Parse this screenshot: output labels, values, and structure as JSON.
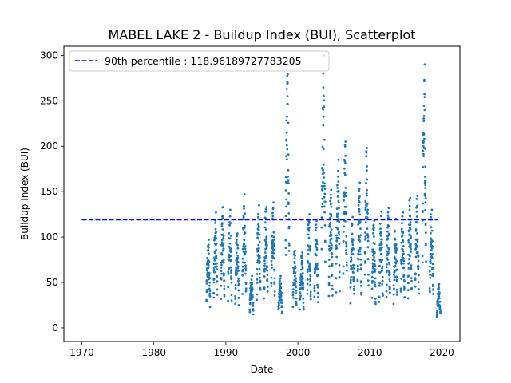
{
  "chart_data": {
    "type": "scatter",
    "title": "MABEL LAKE 2 - Buildup Index (BUI), Scatterplot",
    "xlabel": "Date",
    "ylabel": "Buildup Index (BUI)",
    "xlim": [
      1967.5,
      2022.5
    ],
    "ylim": [
      -15,
      310
    ],
    "x_ticks": [
      1970,
      1980,
      1990,
      2000,
      2010,
      2020
    ],
    "y_ticks": [
      0,
      50,
      100,
      150,
      200,
      250,
      300
    ],
    "grid": false,
    "legend_position": "top-left",
    "colors": {
      "points": "#1f77b4",
      "reference": "#0000ff"
    },
    "reference_line": {
      "label": "90th percentile : 118.96189727783205",
      "value": 118.96189727783205,
      "x_range": [
        1970,
        2019.5
      ],
      "style": "dashed"
    },
    "series": [
      {
        "description_type": "seasonal_observations",
        "seasons": [
          {
            "year": 1987,
            "peak": 97
          },
          {
            "year": 1988,
            "peak": 127
          },
          {
            "year": 1989,
            "peak": 133
          },
          {
            "year": 1990,
            "peak": 130
          },
          {
            "year": 1991,
            "peak": 104
          },
          {
            "year": 1992,
            "peak": 147
          },
          {
            "year": 1993,
            "peak": 57
          },
          {
            "year": 1994,
            "peak": 135
          },
          {
            "year": 1995,
            "peak": 133
          },
          {
            "year": 1996,
            "peak": 138
          },
          {
            "year": 1997,
            "peak": 57
          },
          {
            "year": 1998,
            "peak": 290
          },
          {
            "year": 1999,
            "peak": 85
          },
          {
            "year": 2000,
            "peak": 83
          },
          {
            "year": 2001,
            "peak": 125
          },
          {
            "year": 2002,
            "peak": 118
          },
          {
            "year": 2003,
            "peak": 300
          },
          {
            "year": 2004,
            "peak": 152
          },
          {
            "year": 2005,
            "peak": 185
          },
          {
            "year": 2006,
            "peak": 205
          },
          {
            "year": 2007,
            "peak": 122
          },
          {
            "year": 2008,
            "peak": 160
          },
          {
            "year": 2009,
            "peak": 198
          },
          {
            "year": 2010,
            "peak": 118
          },
          {
            "year": 2011,
            "peak": 128
          },
          {
            "year": 2012,
            "peak": 132
          },
          {
            "year": 2013,
            "peak": 120
          },
          {
            "year": 2014,
            "peak": 127
          },
          {
            "year": 2015,
            "peak": 143
          },
          {
            "year": 2016,
            "peak": 145
          },
          {
            "year": 2017,
            "peak": 290
          },
          {
            "year": 2018,
            "peak": 130
          },
          {
            "year": 2019,
            "peak": 48
          }
        ]
      }
    ]
  }
}
